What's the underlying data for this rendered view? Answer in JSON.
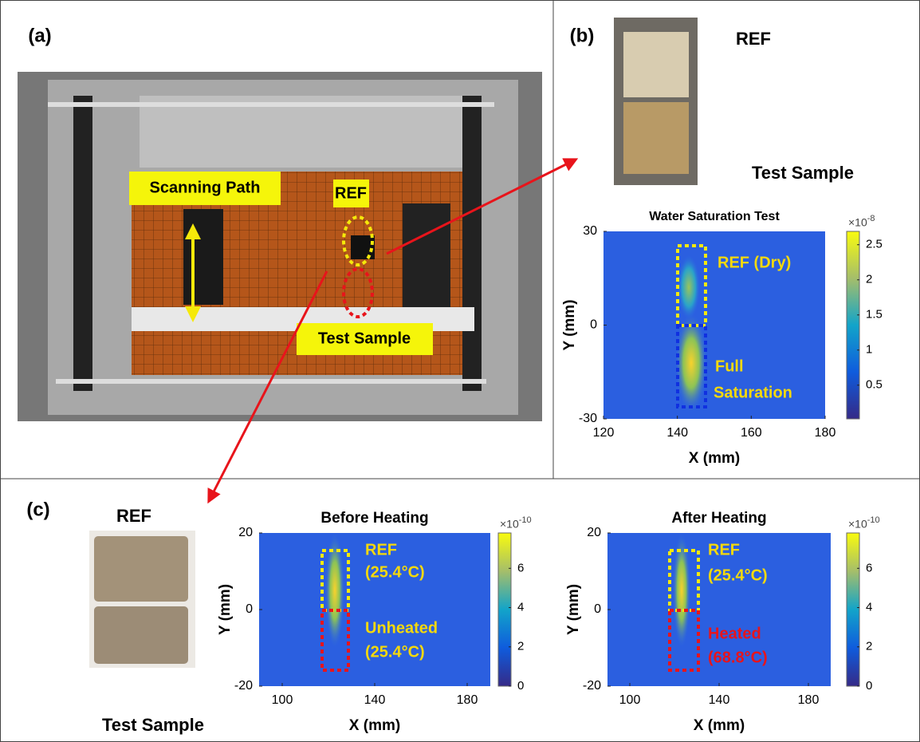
{
  "panels": {
    "a": {
      "label": "(a)",
      "annotations": [
        "Scanning Path",
        "REF",
        "Test Sample"
      ]
    },
    "b": {
      "label": "(b)",
      "photo_labels": [
        "REF",
        "Test Sample"
      ]
    },
    "c": {
      "label": "(c)",
      "photo_labels": [
        "REF",
        "Test Sample"
      ]
    }
  },
  "plots": [
    {
      "title": "Water Saturation Test",
      "xlabel": "X (mm)",
      "ylabel": "Y (mm)",
      "xlim": [
        120,
        180
      ],
      "xticks": [
        120,
        140,
        160,
        180
      ],
      "ylim": [
        -30,
        30
      ],
      "yticks": [
        -30,
        0,
        30
      ],
      "clim": [
        0.02,
        2.69
      ],
      "cticks": [
        0.5,
        1,
        1.5,
        2,
        2.5
      ],
      "cexp_base": "×10",
      "cexp_power": "-8",
      "annotations": [
        {
          "text": "REF (Dry)",
          "color": "#f5d90a"
        },
        {
          "text": "Full",
          "color": "#f5d90a"
        },
        {
          "text": "Saturation",
          "color": "#f5d90a"
        }
      ]
    },
    {
      "title": "Before Heating",
      "xlabel": "X (mm)",
      "ylabel": "Y (mm)",
      "xlim": [
        90,
        190
      ],
      "xticks": [
        100,
        140,
        180
      ],
      "ylim": [
        -20,
        20
      ],
      "yticks": [
        -20,
        0,
        20
      ],
      "clim": [
        0,
        7.8
      ],
      "cticks": [
        0,
        2,
        4,
        6
      ],
      "cexp_base": "×10",
      "cexp_power": "-10",
      "annotations": [
        {
          "text": "REF",
          "color": "#f5d90a"
        },
        {
          "text": "(25.4°C)",
          "color": "#f5d90a"
        },
        {
          "text": "Unheated",
          "color": "#f5d90a"
        },
        {
          "text": "(25.4°C)",
          "color": "#f5d90a"
        }
      ]
    },
    {
      "title": "After Heating",
      "xlabel": "X (mm)",
      "ylabel": "Y (mm)",
      "xlim": [
        90,
        190
      ],
      "xticks": [
        100,
        140,
        180
      ],
      "ylim": [
        -20,
        20
      ],
      "yticks": [
        -20,
        0,
        20
      ],
      "clim": [
        0,
        7.8
      ],
      "cticks": [
        0,
        2,
        4,
        6
      ],
      "cexp_base": "×10",
      "cexp_power": "-10",
      "annotations": [
        {
          "text": "REF",
          "color": "#f5d90a"
        },
        {
          "text": "(25.4°C)",
          "color": "#f5d90a"
        },
        {
          "text": "Heated",
          "color": "#e8141b"
        },
        {
          "text": "(68.8°C)",
          "color": "#e8141b"
        }
      ]
    }
  ]
}
